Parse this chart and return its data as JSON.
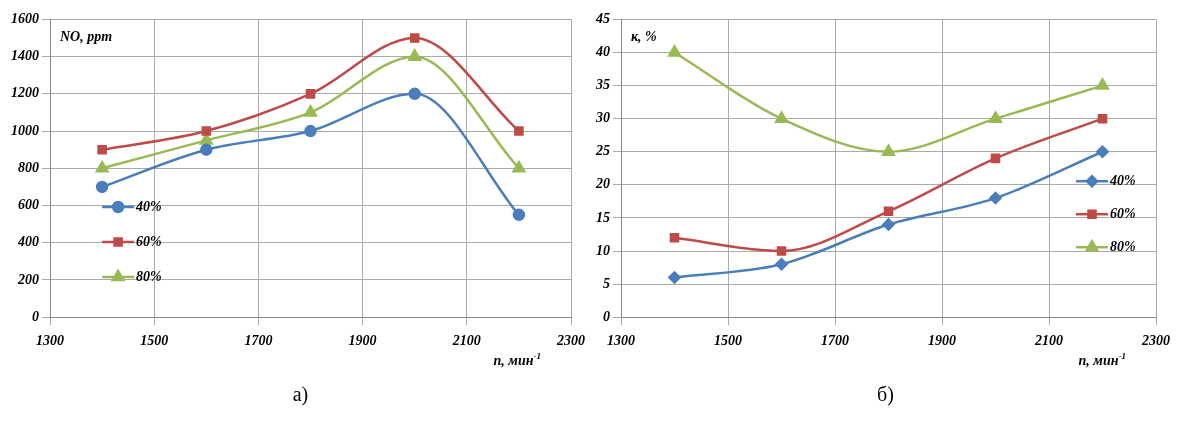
{
  "chart_data": [
    {
      "type": "line",
      "ylabel": "NO, ppm",
      "xlabel": "n, мин$^{-1}$",
      "annotations": [
        "а)"
      ],
      "x": [
        1400,
        1600,
        1800,
        2000,
        2200
      ],
      "xlim": [
        1300,
        2300
      ],
      "xticks": [
        1300,
        1500,
        1700,
        1900,
        2100,
        2300
      ],
      "ylim": [
        0,
        1600
      ],
      "yticks": [
        0,
        200,
        400,
        600,
        800,
        1000,
        1200,
        1400,
        1600
      ],
      "grid": true,
      "legend": "left",
      "series": [
        {
          "name": "40%",
          "color": "#4a7ebb",
          "marker": "circle",
          "values": [
            700,
            900,
            1000,
            1200,
            550
          ]
        },
        {
          "name": "60%",
          "color": "#be4b48",
          "marker": "square",
          "values": [
            900,
            1000,
            1200,
            1500,
            1000
          ]
        },
        {
          "name": "80%",
          "color": "#98b954",
          "marker": "triangle",
          "values": [
            800,
            950,
            1100,
            1400,
            800
          ]
        }
      ]
    },
    {
      "type": "line",
      "ylabel": "к, %",
      "xlabel": "n, мин$^{-1}$",
      "annotations": [
        "б)"
      ],
      "x": [
        1400,
        1600,
        1800,
        2000,
        2200
      ],
      "xlim": [
        1300,
        2300
      ],
      "xticks": [
        1300,
        1500,
        1700,
        1900,
        2100,
        2300
      ],
      "ylim": [
        0,
        45
      ],
      "yticks": [
        0,
        5,
        10,
        15,
        20,
        25,
        30,
        35,
        40,
        45
      ],
      "grid": true,
      "legend": "bottom right",
      "series": [
        {
          "name": "40%",
          "color": "#4a7ebb",
          "marker": "diamond",
          "values": [
            6,
            8,
            14,
            18,
            25
          ]
        },
        {
          "name": "60%",
          "color": "#be4b48",
          "marker": "square",
          "values": [
            12,
            10,
            16,
            24,
            30
          ]
        },
        {
          "name": "80%",
          "color": "#98b954",
          "marker": "triangle",
          "values": [
            40,
            30,
            25,
            30,
            35
          ]
        }
      ]
    }
  ]
}
